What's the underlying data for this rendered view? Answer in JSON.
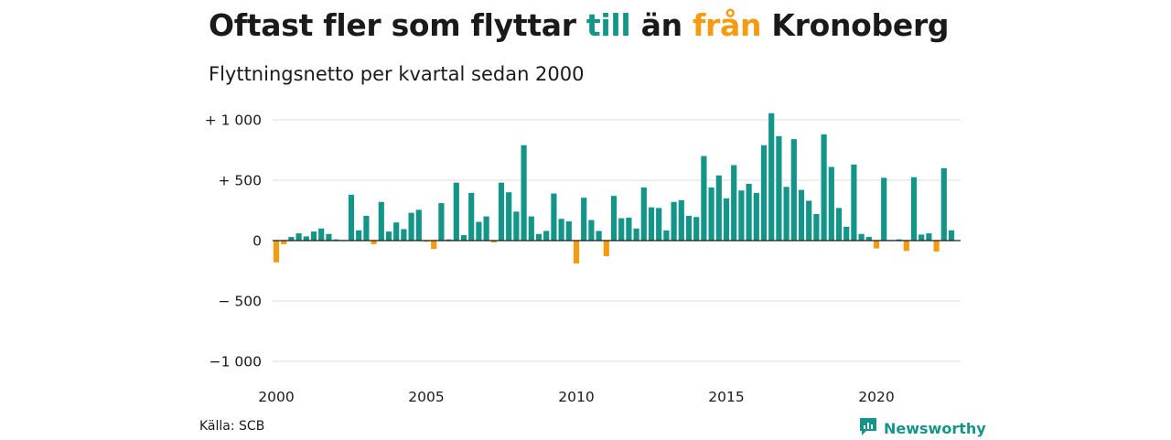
{
  "header": {
    "title_parts": [
      "Oftast fler som flyttar ",
      "till",
      " än ",
      "från",
      " Kronoberg"
    ],
    "subtitle": "Flyttningsnetto per kvartal sedan 2000"
  },
  "footer": {
    "source": "Källa: SCB",
    "brand": "Newsworthy",
    "brand_icon": "newsworthy-logo-icon"
  },
  "colors": {
    "positive": "#149589",
    "negative": "#f39c12",
    "grid": "#dddddd",
    "zero_line": "#1a1a1a"
  },
  "chart_data": {
    "type": "bar",
    "title": "Oftast fler som flyttar till än från Kronoberg",
    "subtitle": "Flyttningsnetto per kvartal sedan 2000",
    "xlabel": "",
    "ylabel": "",
    "ylim": [
      -1000,
      1000
    ],
    "y_ticks": [
      1000,
      500,
      0,
      -500,
      -1000
    ],
    "y_tick_labels": [
      "+ 1 000",
      "+ 500",
      "0",
      "− 500",
      "−1 000"
    ],
    "x_ticks": [
      2000,
      2005,
      2010,
      2015,
      2020
    ],
    "x_tick_labels": [
      "2000",
      "2005",
      "2010",
      "2015",
      "2020"
    ],
    "grid": true,
    "legend": "none",
    "start_year": 2000,
    "periods_per_year": 4,
    "values": [
      -180,
      -30,
      30,
      60,
      35,
      75,
      100,
      55,
      10,
      5,
      380,
      85,
      205,
      -30,
      320,
      75,
      150,
      95,
      230,
      255,
      -10,
      -70,
      310,
      10,
      480,
      45,
      395,
      155,
      200,
      -15,
      480,
      400,
      240,
      790,
      200,
      55,
      80,
      390,
      180,
      160,
      -190,
      355,
      170,
      80,
      -130,
      370,
      185,
      190,
      100,
      440,
      275,
      270,
      85,
      320,
      335,
      205,
      195,
      700,
      440,
      540,
      350,
      625,
      415,
      470,
      395,
      790,
      1055,
      865,
      445,
      840,
      420,
      330,
      220,
      880,
      610,
      270,
      115,
      630,
      55,
      30,
      -65,
      520,
      5,
      10,
      -85,
      525,
      50,
      60,
      -90,
      600,
      85
    ]
  }
}
